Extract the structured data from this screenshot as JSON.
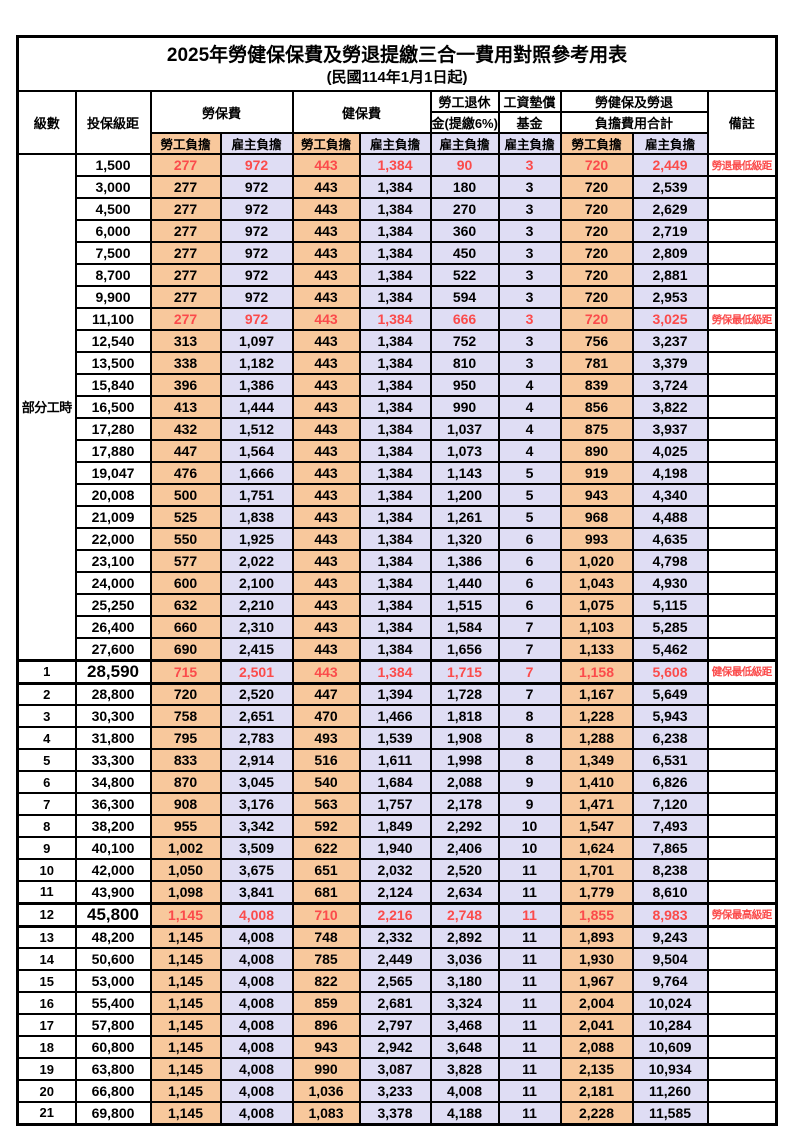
{
  "title": "2025年勞健保保費及勞退提繳三合一費用對照參考用表",
  "subtitle": "(民國114年1月1日起)",
  "header": {
    "level": "級數",
    "bracket": "投保級距",
    "labor_insurance": "勞保費",
    "health_insurance": "健保費",
    "pension_line1": "勞工退休",
    "pension_line2": "金(提繳6%)",
    "wage_fund_line1": "工資墊償",
    "wage_fund_line2": "基金",
    "total_line1": "勞健保及勞退",
    "total_line2": "負擔費用合計",
    "remark": "備註",
    "employee_share": "勞工負擔",
    "employer_share": "雇主負擔"
  },
  "part_time": {
    "label": "部分工時",
    "row_span": 23
  },
  "colors": {
    "employee_bg": "#F8C89C",
    "employer_bg": "#DFDDF4",
    "highlight_text": "#FB4B4B",
    "border": "#000000"
  },
  "rows": [
    {
      "level": "",
      "bracket": "1,500",
      "values": [
        "277",
        "972",
        "443",
        "1,384",
        "90",
        "3",
        "720",
        "2,449"
      ],
      "remark": "勞退最低級距",
      "red": true,
      "emphasis": false
    },
    {
      "level": "",
      "bracket": "3,000",
      "values": [
        "277",
        "972",
        "443",
        "1,384",
        "180",
        "3",
        "720",
        "2,539"
      ],
      "remark": "",
      "red": false,
      "emphasis": false
    },
    {
      "level": "",
      "bracket": "4,500",
      "values": [
        "277",
        "972",
        "443",
        "1,384",
        "270",
        "3",
        "720",
        "2,629"
      ],
      "remark": "",
      "red": false,
      "emphasis": false
    },
    {
      "level": "",
      "bracket": "6,000",
      "values": [
        "277",
        "972",
        "443",
        "1,384",
        "360",
        "3",
        "720",
        "2,719"
      ],
      "remark": "",
      "red": false,
      "emphasis": false
    },
    {
      "level": "",
      "bracket": "7,500",
      "values": [
        "277",
        "972",
        "443",
        "1,384",
        "450",
        "3",
        "720",
        "2,809"
      ],
      "remark": "",
      "red": false,
      "emphasis": false
    },
    {
      "level": "",
      "bracket": "8,700",
      "values": [
        "277",
        "972",
        "443",
        "1,384",
        "522",
        "3",
        "720",
        "2,881"
      ],
      "remark": "",
      "red": false,
      "emphasis": false
    },
    {
      "level": "",
      "bracket": "9,900",
      "values": [
        "277",
        "972",
        "443",
        "1,384",
        "594",
        "3",
        "720",
        "2,953"
      ],
      "remark": "",
      "red": false,
      "emphasis": false
    },
    {
      "level": "",
      "bracket": "11,100",
      "values": [
        "277",
        "972",
        "443",
        "1,384",
        "666",
        "3",
        "720",
        "3,025"
      ],
      "remark": "勞保最低級距",
      "red": true,
      "emphasis": false
    },
    {
      "level": "",
      "bracket": "12,540",
      "values": [
        "313",
        "1,097",
        "443",
        "1,384",
        "752",
        "3",
        "756",
        "3,237"
      ],
      "remark": "",
      "red": false,
      "emphasis": false
    },
    {
      "level": "",
      "bracket": "13,500",
      "values": [
        "338",
        "1,182",
        "443",
        "1,384",
        "810",
        "3",
        "781",
        "3,379"
      ],
      "remark": "",
      "red": false,
      "emphasis": false
    },
    {
      "level": "",
      "bracket": "15,840",
      "values": [
        "396",
        "1,386",
        "443",
        "1,384",
        "950",
        "4",
        "839",
        "3,724"
      ],
      "remark": "",
      "red": false,
      "emphasis": false
    },
    {
      "level": "",
      "bracket": "16,500",
      "values": [
        "413",
        "1,444",
        "443",
        "1,384",
        "990",
        "4",
        "856",
        "3,822"
      ],
      "remark": "",
      "red": false,
      "emphasis": false
    },
    {
      "level": "",
      "bracket": "17,280",
      "values": [
        "432",
        "1,512",
        "443",
        "1,384",
        "1,037",
        "4",
        "875",
        "3,937"
      ],
      "remark": "",
      "red": false,
      "emphasis": false
    },
    {
      "level": "",
      "bracket": "17,880",
      "values": [
        "447",
        "1,564",
        "443",
        "1,384",
        "1,073",
        "4",
        "890",
        "4,025"
      ],
      "remark": "",
      "red": false,
      "emphasis": false
    },
    {
      "level": "",
      "bracket": "19,047",
      "values": [
        "476",
        "1,666",
        "443",
        "1,384",
        "1,143",
        "5",
        "919",
        "4,198"
      ],
      "remark": "",
      "red": false,
      "emphasis": false
    },
    {
      "level": "",
      "bracket": "20,008",
      "values": [
        "500",
        "1,751",
        "443",
        "1,384",
        "1,200",
        "5",
        "943",
        "4,340"
      ],
      "remark": "",
      "red": false,
      "emphasis": false
    },
    {
      "level": "",
      "bracket": "21,009",
      "values": [
        "525",
        "1,838",
        "443",
        "1,384",
        "1,261",
        "5",
        "968",
        "4,488"
      ],
      "remark": "",
      "red": false,
      "emphasis": false
    },
    {
      "level": "",
      "bracket": "22,000",
      "values": [
        "550",
        "1,925",
        "443",
        "1,384",
        "1,320",
        "6",
        "993",
        "4,635"
      ],
      "remark": "",
      "red": false,
      "emphasis": false
    },
    {
      "level": "",
      "bracket": "23,100",
      "values": [
        "577",
        "2,022",
        "443",
        "1,384",
        "1,386",
        "6",
        "1,020",
        "4,798"
      ],
      "remark": "",
      "red": false,
      "emphasis": false
    },
    {
      "level": "",
      "bracket": "24,000",
      "values": [
        "600",
        "2,100",
        "443",
        "1,384",
        "1,440",
        "6",
        "1,043",
        "4,930"
      ],
      "remark": "",
      "red": false,
      "emphasis": false
    },
    {
      "level": "",
      "bracket": "25,250",
      "values": [
        "632",
        "2,210",
        "443",
        "1,384",
        "1,515",
        "6",
        "1,075",
        "5,115"
      ],
      "remark": "",
      "red": false,
      "emphasis": false
    },
    {
      "level": "",
      "bracket": "26,400",
      "values": [
        "660",
        "2,310",
        "443",
        "1,384",
        "1,584",
        "7",
        "1,103",
        "5,285"
      ],
      "remark": "",
      "red": false,
      "emphasis": false
    },
    {
      "level": "",
      "bracket": "27,600",
      "values": [
        "690",
        "2,415",
        "443",
        "1,384",
        "1,656",
        "7",
        "1,133",
        "5,462"
      ],
      "remark": "",
      "red": false,
      "emphasis": false
    },
    {
      "level": "1",
      "bracket": "28,590",
      "values": [
        "715",
        "2,501",
        "443",
        "1,384",
        "1,715",
        "7",
        "1,158",
        "5,608"
      ],
      "remark": "健保最低級距",
      "red": true,
      "emphasis": true
    },
    {
      "level": "2",
      "bracket": "28,800",
      "values": [
        "720",
        "2,520",
        "447",
        "1,394",
        "1,728",
        "7",
        "1,167",
        "5,649"
      ],
      "remark": "",
      "red": false,
      "emphasis": false
    },
    {
      "level": "3",
      "bracket": "30,300",
      "values": [
        "758",
        "2,651",
        "470",
        "1,466",
        "1,818",
        "8",
        "1,228",
        "5,943"
      ],
      "remark": "",
      "red": false,
      "emphasis": false
    },
    {
      "level": "4",
      "bracket": "31,800",
      "values": [
        "795",
        "2,783",
        "493",
        "1,539",
        "1,908",
        "8",
        "1,288",
        "6,238"
      ],
      "remark": "",
      "red": false,
      "emphasis": false
    },
    {
      "level": "5",
      "bracket": "33,300",
      "values": [
        "833",
        "2,914",
        "516",
        "1,611",
        "1,998",
        "8",
        "1,349",
        "6,531"
      ],
      "remark": "",
      "red": false,
      "emphasis": false
    },
    {
      "level": "6",
      "bracket": "34,800",
      "values": [
        "870",
        "3,045",
        "540",
        "1,684",
        "2,088",
        "9",
        "1,410",
        "6,826"
      ],
      "remark": "",
      "red": false,
      "emphasis": false
    },
    {
      "level": "7",
      "bracket": "36,300",
      "values": [
        "908",
        "3,176",
        "563",
        "1,757",
        "2,178",
        "9",
        "1,471",
        "7,120"
      ],
      "remark": "",
      "red": false,
      "emphasis": false
    },
    {
      "level": "8",
      "bracket": "38,200",
      "values": [
        "955",
        "3,342",
        "592",
        "1,849",
        "2,292",
        "10",
        "1,547",
        "7,493"
      ],
      "remark": "",
      "red": false,
      "emphasis": false
    },
    {
      "level": "9",
      "bracket": "40,100",
      "values": [
        "1,002",
        "3,509",
        "622",
        "1,940",
        "2,406",
        "10",
        "1,624",
        "7,865"
      ],
      "remark": "",
      "red": false,
      "emphasis": false
    },
    {
      "level": "10",
      "bracket": "42,000",
      "values": [
        "1,050",
        "3,675",
        "651",
        "2,032",
        "2,520",
        "11",
        "1,701",
        "8,238"
      ],
      "remark": "",
      "red": false,
      "emphasis": false
    },
    {
      "level": "11",
      "bracket": "43,900",
      "values": [
        "1,098",
        "3,841",
        "681",
        "2,124",
        "2,634",
        "11",
        "1,779",
        "8,610"
      ],
      "remark": "",
      "red": false,
      "emphasis": false
    },
    {
      "level": "12",
      "bracket": "45,800",
      "values": [
        "1,145",
        "4,008",
        "710",
        "2,216",
        "2,748",
        "11",
        "1,855",
        "8,983"
      ],
      "remark": "勞保最高級距",
      "red": true,
      "emphasis": true
    },
    {
      "level": "13",
      "bracket": "48,200",
      "values": [
        "1,145",
        "4,008",
        "748",
        "2,332",
        "2,892",
        "11",
        "1,893",
        "9,243"
      ],
      "remark": "",
      "red": false,
      "emphasis": false
    },
    {
      "level": "14",
      "bracket": "50,600",
      "values": [
        "1,145",
        "4,008",
        "785",
        "2,449",
        "3,036",
        "11",
        "1,930",
        "9,504"
      ],
      "remark": "",
      "red": false,
      "emphasis": false
    },
    {
      "level": "15",
      "bracket": "53,000",
      "values": [
        "1,145",
        "4,008",
        "822",
        "2,565",
        "3,180",
        "11",
        "1,967",
        "9,764"
      ],
      "remark": "",
      "red": false,
      "emphasis": false
    },
    {
      "level": "16",
      "bracket": "55,400",
      "values": [
        "1,145",
        "4,008",
        "859",
        "2,681",
        "3,324",
        "11",
        "2,004",
        "10,024"
      ],
      "remark": "",
      "red": false,
      "emphasis": false
    },
    {
      "level": "17",
      "bracket": "57,800",
      "values": [
        "1,145",
        "4,008",
        "896",
        "2,797",
        "3,468",
        "11",
        "2,041",
        "10,284"
      ],
      "remark": "",
      "red": false,
      "emphasis": false
    },
    {
      "level": "18",
      "bracket": "60,800",
      "values": [
        "1,145",
        "4,008",
        "943",
        "2,942",
        "3,648",
        "11",
        "2,088",
        "10,609"
      ],
      "remark": "",
      "red": false,
      "emphasis": false
    },
    {
      "level": "19",
      "bracket": "63,800",
      "values": [
        "1,145",
        "4,008",
        "990",
        "3,087",
        "3,828",
        "11",
        "2,135",
        "10,934"
      ],
      "remark": "",
      "red": false,
      "emphasis": false
    },
    {
      "level": "20",
      "bracket": "66,800",
      "values": [
        "1,145",
        "4,008",
        "1,036",
        "3,233",
        "4,008",
        "11",
        "2,181",
        "11,260"
      ],
      "remark": "",
      "red": false,
      "emphasis": false
    },
    {
      "level": "21",
      "bracket": "69,800",
      "values": [
        "1,145",
        "4,008",
        "1,083",
        "3,378",
        "4,188",
        "11",
        "2,228",
        "11,585"
      ],
      "remark": "",
      "red": false,
      "emphasis": false
    }
  ]
}
